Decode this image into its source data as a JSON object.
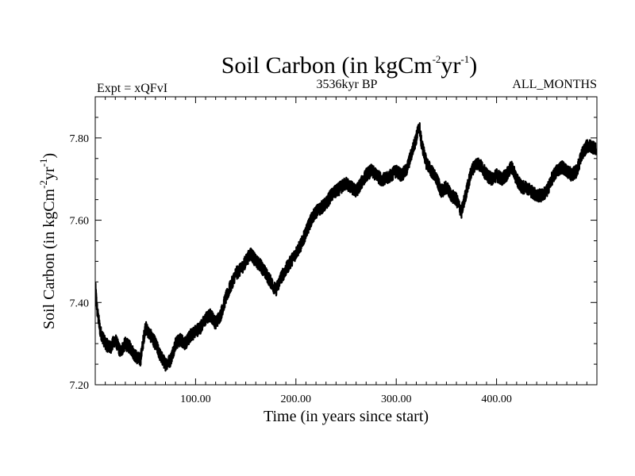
{
  "chart_data": {
    "type": "line",
    "title": {
      "main": "Soil Carbon (in kgCm",
      "exp1": "-2",
      "mid": "yr",
      "exp2": "-1",
      "end": ")"
    },
    "subtitle_left": "Expt = xQFvI",
    "subtitle_center": "3536kyr BP",
    "subtitle_right": "ALL_MONTHS",
    "xlabel": "Time (in years since start)",
    "ylabel": {
      "main": "Soil Carbon (in kgCm",
      "exp1": "-2",
      "mid": "yr",
      "exp2": "-1",
      "end": ")"
    },
    "xlim": [
      0,
      500
    ],
    "ylim": [
      7.2,
      7.9
    ],
    "x_ticks": [
      100,
      200,
      300,
      400
    ],
    "x_tick_labels": [
      "100.00",
      "200.00",
      "300.00",
      "400.00"
    ],
    "y_ticks": [
      7.2,
      7.4,
      7.6,
      7.8
    ],
    "y_tick_labels": [
      "7.20",
      "7.40",
      "7.60",
      "7.80"
    ],
    "series": [
      {
        "name": "Soil Carbon",
        "color": "#000000",
        "x": [
          0,
          2,
          5,
          10,
          15,
          20,
          25,
          30,
          35,
          40,
          45,
          50,
          55,
          60,
          65,
          70,
          75,
          80,
          85,
          90,
          95,
          100,
          105,
          110,
          115,
          120,
          125,
          130,
          135,
          140,
          145,
          150,
          155,
          160,
          165,
          170,
          175,
          180,
          185,
          190,
          195,
          200,
          205,
          210,
          215,
          220,
          225,
          230,
          235,
          240,
          245,
          250,
          255,
          260,
          265,
          270,
          275,
          280,
          285,
          290,
          295,
          300,
          305,
          310,
          315,
          320,
          323,
          325,
          330,
          335,
          340,
          345,
          350,
          355,
          360,
          365,
          370,
          375,
          380,
          385,
          390,
          395,
          400,
          405,
          410,
          415,
          420,
          425,
          430,
          435,
          440,
          445,
          450,
          455,
          460,
          465,
          470,
          475,
          480,
          485,
          490,
          495,
          499
        ],
        "y": [
          7.44,
          7.38,
          7.33,
          7.3,
          7.29,
          7.31,
          7.28,
          7.3,
          7.29,
          7.27,
          7.26,
          7.34,
          7.32,
          7.3,
          7.27,
          7.25,
          7.26,
          7.3,
          7.31,
          7.3,
          7.32,
          7.33,
          7.34,
          7.36,
          7.37,
          7.35,
          7.37,
          7.41,
          7.44,
          7.47,
          7.48,
          7.5,
          7.52,
          7.5,
          7.49,
          7.47,
          7.45,
          7.43,
          7.46,
          7.48,
          7.5,
          7.52,
          7.54,
          7.57,
          7.6,
          7.62,
          7.63,
          7.64,
          7.66,
          7.67,
          7.68,
          7.69,
          7.68,
          7.67,
          7.69,
          7.71,
          7.72,
          7.71,
          7.7,
          7.7,
          7.71,
          7.72,
          7.71,
          7.72,
          7.76,
          7.8,
          7.83,
          7.79,
          7.74,
          7.72,
          7.7,
          7.67,
          7.68,
          7.66,
          7.65,
          7.62,
          7.67,
          7.72,
          7.74,
          7.73,
          7.71,
          7.7,
          7.71,
          7.7,
          7.71,
          7.73,
          7.7,
          7.68,
          7.68,
          7.67,
          7.66,
          7.66,
          7.67,
          7.7,
          7.72,
          7.73,
          7.72,
          7.71,
          7.72,
          7.76,
          7.78,
          7.78,
          7.77
        ]
      }
    ]
  }
}
